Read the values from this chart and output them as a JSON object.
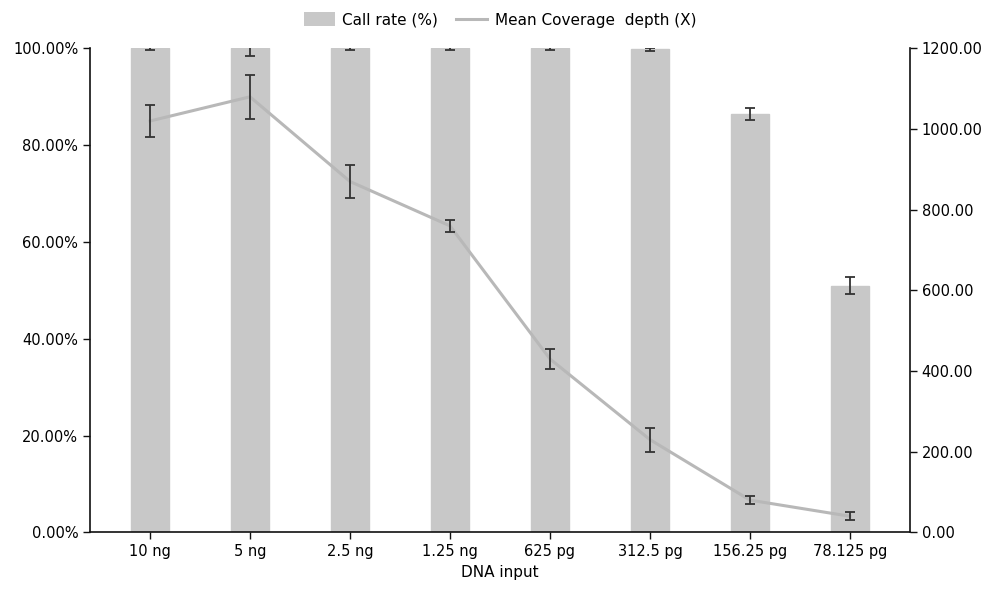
{
  "categories": [
    "10 ng",
    "5 ng",
    "2.5 ng",
    "1.25 ng",
    "625 pg",
    "312.5 pg",
    "156.25 pg",
    "78.125 pg"
  ],
  "call_rate": [
    100.0,
    100.0,
    100.0,
    100.0,
    100.0,
    99.8,
    86.5,
    51.0
  ],
  "call_rate_err": [
    0.3,
    1.5,
    0.3,
    0.3,
    0.3,
    0.3,
    1.2,
    1.8
  ],
  "mean_coverage": [
    1020.0,
    1080.0,
    870.0,
    760.0,
    430.0,
    230.0,
    80.0,
    40.0
  ],
  "mean_coverage_err": [
    40.0,
    55.0,
    40.0,
    15.0,
    25.0,
    30.0,
    10.0,
    10.0
  ],
  "bar_color": "#c8c8c8",
  "bar_edge_color": "#c8c8c8",
  "line_color": "#b8b8b8",
  "error_bar_color": "#333333",
  "xlabel": "DNA input",
  "legend_bar_label": "Call rate (%)",
  "legend_line_label": "Mean Coverage  depth (X)",
  "ylim_left": [
    0.0,
    100.0
  ],
  "ylim_right": [
    0.0,
    1200.0
  ],
  "yticks_left": [
    0.0,
    20.0,
    40.0,
    60.0,
    80.0,
    100.0
  ],
  "ytick_labels_left": [
    "0.00%",
    "20.00%",
    "40.00%",
    "60.00%",
    "80.00%",
    "100.00%"
  ],
  "yticks_right": [
    0.0,
    200.0,
    400.0,
    600.0,
    800.0,
    1000.0,
    1200.0
  ],
  "ytick_labels_right": [
    "0.00",
    "200.00",
    "400.00",
    "600.00",
    "800.00",
    "1000.00",
    "1200.00"
  ],
  "background_color": "#ffffff",
  "bar_width": 0.38,
  "legend_fontsize": 11,
  "axis_fontsize": 11,
  "tick_fontsize": 10.5,
  "spine_color": "#111111",
  "tick_color": "#111111"
}
